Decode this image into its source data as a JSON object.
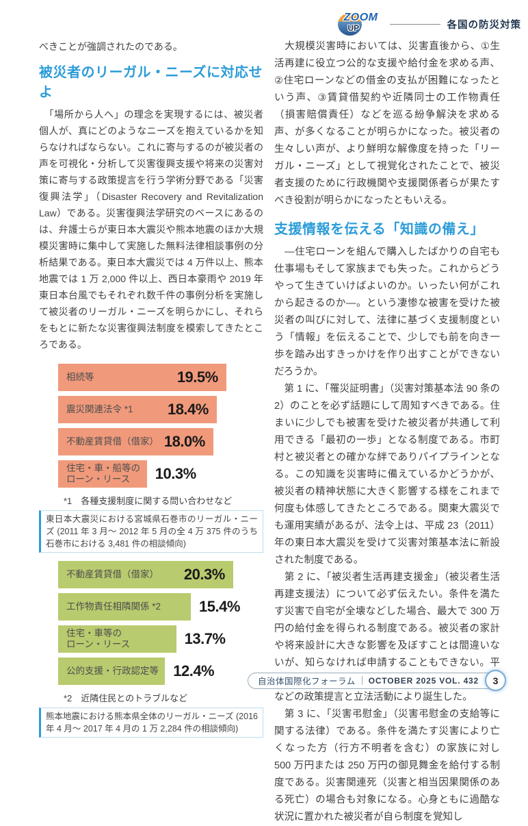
{
  "header": {
    "logo_zoom": "ZOOM",
    "logo_up": "UP",
    "section_label": "各国の防災対策"
  },
  "left_column": {
    "continuation": "べきことが強調されたのである。",
    "heading": "被災者のリーガル・ニーズに対応せよ",
    "paragraph": "　「場所から人へ」の理念を実現するには、被災者個人が、真にどのようなニーズを抱えているかを知らなければならない。これに寄与するのが被災者の声を可視化・分析して災害復興支援や将来の災害対策に寄与する政策提言を行う学術分野である「災害復興法学」（Disaster Recovery and Revitalization Law）である。災害復興法学研究のベースにあるのは、弁護士らが東日本大震災や熊本地震のほか大規模災害時に集中して実施した無料法律相談事例の分析結果である。東日本大震災では 4 万件以上、熊本地震では 1 万 2,000 件以上、西日本豪雨や 2019 年東日本台風でもそれぞれ数千件の事例分析を実施して被災者のリーガル・ニーズを明らかにし、それらをもとに新たな災害復興法制度を模索してきたところである。"
  },
  "right_column": {
    "heading": "支援情報を伝える「知識の備え」",
    "paragraphs": [
      "　大規模災害時においては、災害直後から、①生活再建に役立つ公的な支援や給付金を求める声、②住宅ローンなどの借金の支払が困難になったという声、③賃貸借契約や近隣同士の工作物責任（損害賠償責任）などを巡る紛争解決を求める声、が多くなることが明らかになった。被災者の生々しい声が、より鮮明な解像度を持った「リーガル・ニーズ」として視覚化されたことで、被災者支援のために行政機関や支援関係者らが果たすべき役割が明らかになったともいえる。",
      "　―住宅ローンを組んで購入したばかりの自宅も仕事場もそして家族までも失った。これからどうやって生きていけばよいのか。いったい何がこれから起きるのか―。という凄惨な被害を受けた被災者の叫びに対して、法律に基づく支援制度という「情報」を伝えることで、少しでも前を向き一歩を踏み出すきっかけを作り出すことができないだろうか。",
      "　第 1 に、「罹災証明書」（災害対策基本法 90 条の 2）のことを必ず話題にして周知すべきである。住まいに少しでも被害を受けた被災者が共通して利用できる「最初の一歩」となる制度である。市町村と被災者との確かな絆でありパイプラインとなる。この知識を災害時に備えているかどうかが、被災者の精神状態に大きく影響する様をこれまで何度も体感してきたところである。関東大震災でも運用実績があるが、法令上は、平成 23（2011）年の東日本大震災を受けて災害対策基本法に新設された制度である。",
      "　第 2 に、「被災者生活再建支援金」（被災者生活再建支援法）について必ず伝えたい。条件を満たす災害で自宅が全壊などした場合、最大で 300 万円の給付金を得られる制度である。被災者の家計や将来設計に大きな影響を及ぼすことは間違いないが、知らなければ申請することもできない。平成 7（1995）年の阪神・淡路大震災後に市民団体などの政策提言と立法活動により誕生した。",
      "　第 3 に、「災害弔慰金」（災害弔慰金の支給等に関する法律）である。条件を満たす災害により亡くなった方（行方不明者を含む）の家族に対し 500 万円または 250 万円の御見舞金を給付する制度である。災害関連死（災害と相当因果関係のある死亡）の場合も対象になる。心身ともに過酷な状況に置かれた被災者が自ら制度を覚知し"
    ]
  },
  "chart_data": [
    {
      "type": "bar",
      "orientation": "horizontal",
      "categories": [
        "相続等",
        "震災関連法令 *1",
        "不動産賃貸借（借家）",
        "住宅・車・船等の\nローン・リース"
      ],
      "values": [
        19.5,
        18.4,
        18.0,
        10.3
      ],
      "value_unit": "%",
      "xlim": [
        0,
        23.8
      ],
      "bar_color": "#F09A7B",
      "footnote": "*1　各種支援制度に関する問い合わせなど",
      "caption": "東日本大震災における宮城県石巻市のリーガル・ニーズ (2011 年 3 月～ 2012 年 5 月の全 4 万 375 件のうち石巻市における 3,481 件の相談傾向)"
    },
    {
      "type": "bar",
      "orientation": "horizontal",
      "categories": [
        "不動産賃貸借（借家）",
        "工作物責任相隣関係 *2",
        "住宅・車等の\nローン・リース",
        "公的支援・行政認定等"
      ],
      "values": [
        20.3,
        15.4,
        13.7,
        12.4
      ],
      "value_unit": "%",
      "xlim": [
        0,
        23.8
      ],
      "bar_color": "#B8CB6E",
      "footnote": "*2　近隣住民とのトラブルなど",
      "caption": "熊本地震における熊本県全体のリーガル・ニーズ (2016 年 4 月～ 2017 年 4 月の 1 万 2,284 件の相談傾向)"
    }
  ],
  "footer": {
    "journal": "自治体国際化フォーラム",
    "issue": "OCTOBER 2025 VOL. 432",
    "page_number": "3"
  },
  "colors": {
    "accent_blue": "#2B9CD8",
    "bar_orange": "#F09A7B",
    "bar_green": "#B8CB6E",
    "navy": "#22374F"
  }
}
